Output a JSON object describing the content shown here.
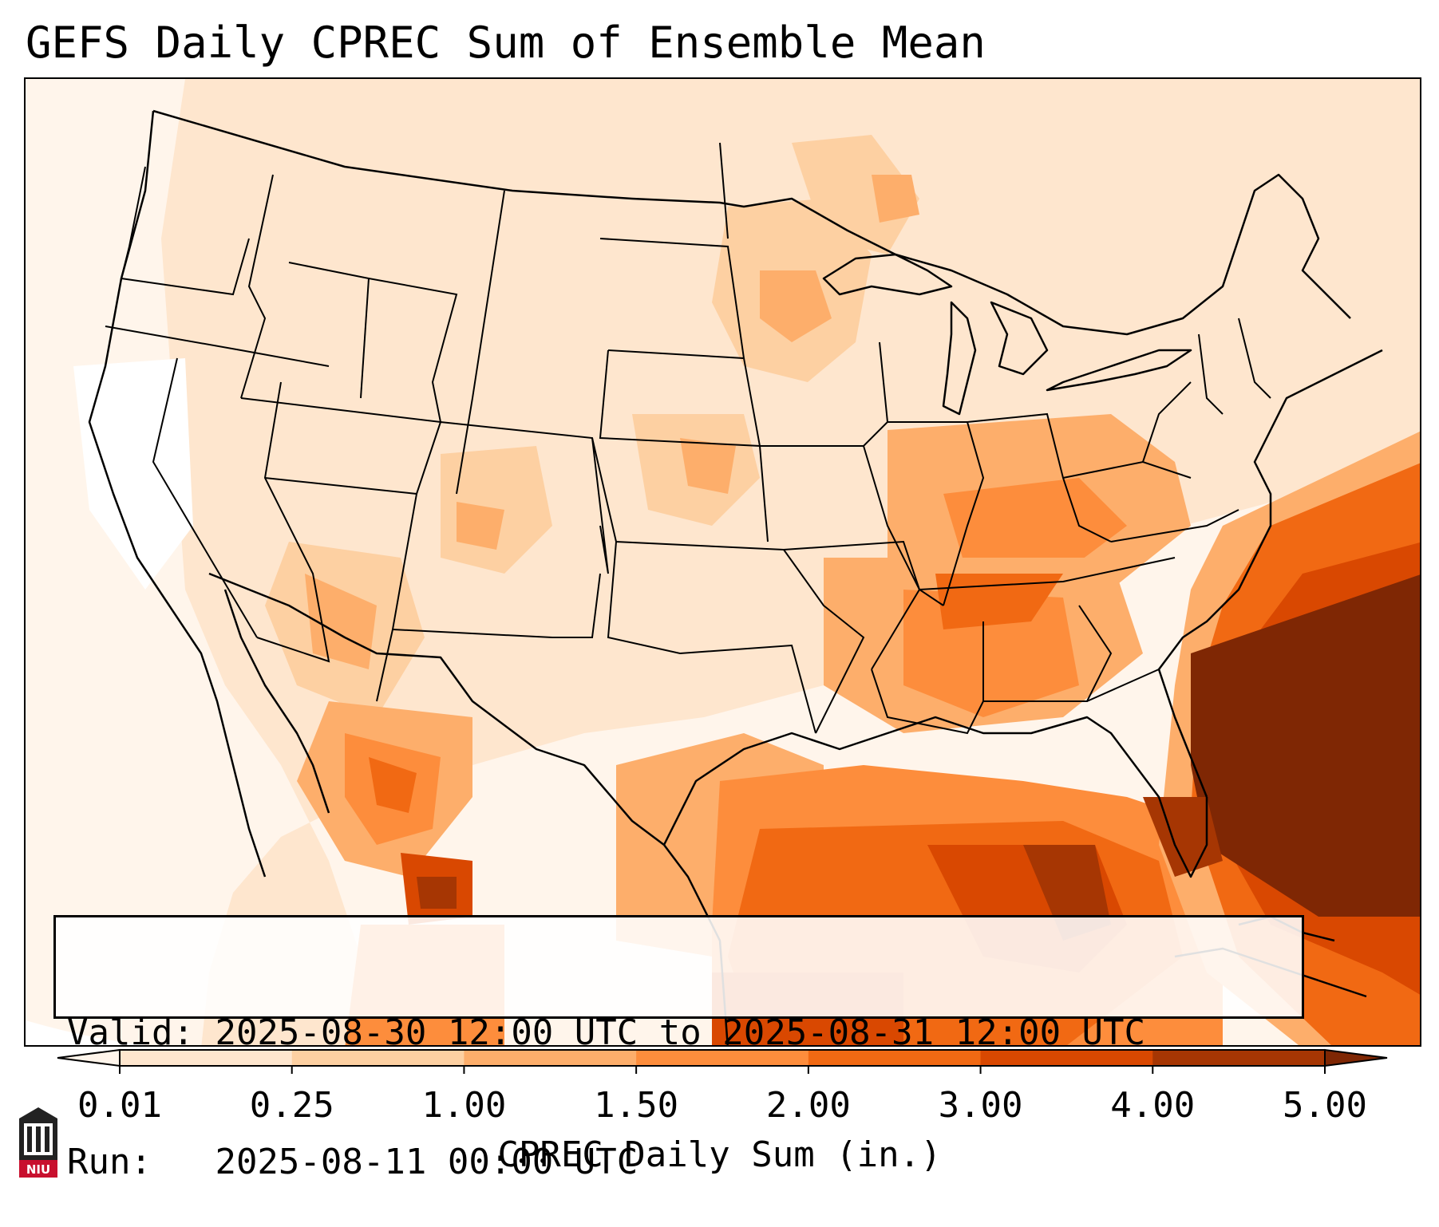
{
  "title": "GEFS Daily CPREC Sum of Ensemble Mean",
  "info": {
    "valid_label": "Valid:",
    "valid_text": "2025-08-30 12:00 UTC to 2025-08-31 12:00 UTC",
    "run_label": "Run:",
    "run_text": "2025-08-11 00:00 UTC"
  },
  "colorbar": {
    "label": "CPREC Daily Sum (in.)",
    "ticks": [
      "0.01",
      "0.25",
      "1.00",
      "1.50",
      "2.00",
      "3.00",
      "4.00",
      "5.00"
    ],
    "colors": [
      "#fff5eb",
      "#fee6ce",
      "#fdd0a2",
      "#fdae6b",
      "#fd8d3c",
      "#f16913",
      "#d94801",
      "#a63603",
      "#7f2704"
    ]
  },
  "logo": {
    "text": "NIU",
    "color": "#c8102e"
  }
}
